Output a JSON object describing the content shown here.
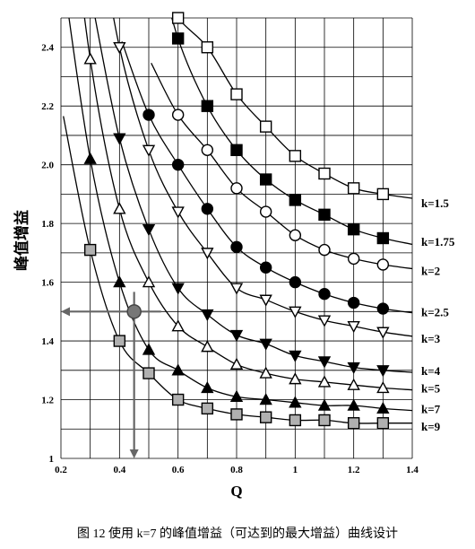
{
  "chart_data": {
    "type": "line",
    "title": "",
    "xlabel": "Q",
    "ylabel": "峰值增益",
    "xlim": [
      0.2,
      1.4
    ],
    "ylim": [
      1.0,
      2.5
    ],
    "x_ticks": [
      "0.2",
      "0.4",
      "0.6",
      "0.8",
      "1",
      "1.2",
      "1.4"
    ],
    "y_ticks": [
      "1",
      "1.2",
      "1.4",
      "1.6",
      "1.8",
      "2.0",
      "2.2",
      "2.4"
    ],
    "grid": true,
    "series": [
      {
        "name": "k=1.5",
        "marker": "square-open",
        "label_y": 1.87,
        "x": [
          0.6,
          0.7,
          0.8,
          0.9,
          1.0,
          1.1,
          1.2,
          1.3
        ],
        "y": [
          2.5,
          2.4,
          2.24,
          2.13,
          2.03,
          1.97,
          1.92,
          1.9
        ]
      },
      {
        "name": "k=1.75",
        "marker": "square-filled",
        "label_y": 1.74,
        "x": [
          0.6,
          0.7,
          0.8,
          0.9,
          1.0,
          1.1,
          1.2,
          1.3
        ],
        "y": [
          2.43,
          2.2,
          2.05,
          1.95,
          1.88,
          1.83,
          1.78,
          1.75
        ]
      },
      {
        "name": "k=2",
        "marker": "circle-open",
        "label_y": 1.64,
        "x": [
          0.6,
          0.7,
          0.8,
          0.9,
          1.0,
          1.1,
          1.2,
          1.3
        ],
        "y": [
          2.17,
          2.05,
          1.92,
          1.84,
          1.76,
          1.71,
          1.68,
          1.66
        ]
      },
      {
        "name": "k=2.5",
        "marker": "circle-filled",
        "label_y": 1.5,
        "x": [
          0.5,
          0.6,
          0.7,
          0.8,
          0.9,
          1.0,
          1.1,
          1.2,
          1.3
        ],
        "y": [
          2.17,
          2.0,
          1.85,
          1.72,
          1.65,
          1.6,
          1.56,
          1.53,
          1.51
        ]
      },
      {
        "name": "k=3",
        "marker": "triangle-down-open",
        "label_y": 1.41,
        "x": [
          0.4,
          0.5,
          0.6,
          0.7,
          0.8,
          0.9,
          1.0,
          1.1,
          1.2,
          1.3
        ],
        "y": [
          2.4,
          2.05,
          1.84,
          1.7,
          1.58,
          1.54,
          1.5,
          1.47,
          1.45,
          1.43
        ]
      },
      {
        "name": "k=4",
        "marker": "triangle-down-filled",
        "label_y": 1.3,
        "x": [
          0.4,
          0.5,
          0.6,
          0.7,
          0.8,
          0.9,
          1.0,
          1.1,
          1.2,
          1.3
        ],
        "y": [
          2.09,
          1.78,
          1.58,
          1.49,
          1.42,
          1.39,
          1.35,
          1.33,
          1.31,
          1.3
        ]
      },
      {
        "name": "k=5",
        "marker": "triangle-up-open",
        "label_y": 1.24,
        "x": [
          0.3,
          0.4,
          0.5,
          0.6,
          0.7,
          0.8,
          0.9,
          1.0,
          1.1,
          1.2,
          1.3
        ],
        "y": [
          2.36,
          1.85,
          1.6,
          1.45,
          1.38,
          1.32,
          1.29,
          1.27,
          1.26,
          1.25,
          1.24
        ]
      },
      {
        "name": "k=7",
        "marker": "triangle-up-filled",
        "label_y": 1.17,
        "x": [
          0.3,
          0.4,
          0.5,
          0.6,
          0.7,
          0.8,
          0.9,
          1.0,
          1.1,
          1.2,
          1.3
        ],
        "y": [
          2.02,
          1.6,
          1.37,
          1.3,
          1.24,
          1.21,
          1.2,
          1.19,
          1.18,
          1.18,
          1.17
        ]
      },
      {
        "name": "k=9",
        "marker": "square-gray",
        "label_y": 1.11,
        "x": [
          0.3,
          0.4,
          0.5,
          0.6,
          0.7,
          0.8,
          0.9,
          1.0,
          1.1,
          1.2,
          1.3
        ],
        "y": [
          1.71,
          1.4,
          1.29,
          1.2,
          1.17,
          1.15,
          1.14,
          1.13,
          1.13,
          1.12,
          1.12
        ]
      }
    ],
    "annotation": {
      "x": 0.45,
      "y": 1.5,
      "style": "design point with arrows to both axes",
      "color": "#666666"
    },
    "colors": {
      "line": "#000000",
      "grid": "#000000",
      "gray_fill": "#b0b0b0",
      "annotation": "#666666"
    }
  },
  "caption": "图 12 使用 k=7 的峰值增益（可达到的最大增益）曲线设计"
}
